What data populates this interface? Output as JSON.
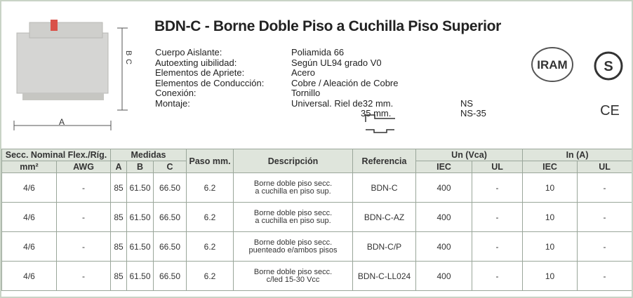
{
  "header": {
    "title": "BDN-C - Borne Doble Piso a Cuchilla Piso Superior"
  },
  "diagram": {
    "dim_a": "A",
    "dim_b": "B",
    "dim_c": "C"
  },
  "specs": [
    {
      "label": "Cuerpo Aislante:",
      "value": "Poliamida 66"
    },
    {
      "label": "Autoexting uibilidad:",
      "value": "Según UL94 grado V0"
    },
    {
      "label": "Elementos de Apriete:",
      "value": "Acero"
    },
    {
      "label": "Elementos de Conducción:",
      "value": "Cobre / Aleación de Cobre"
    },
    {
      "label": "Conexión:",
      "value": "Tornillo"
    },
    {
      "label": "Montaje:",
      "value": "Universal. Riel de32 mm.",
      "rail": "NS"
    }
  ],
  "mounting_extra": {
    "value": "35 mm.",
    "rail": "NS-35"
  },
  "logos": {
    "iram": "IRAM",
    "s": "S",
    "ce": "CE"
  },
  "table": {
    "group_headers": [
      "Secc. Nominal Flex./Ríg.",
      "Medidas",
      "Paso mm.",
      "Descripción",
      "Referencia",
      "Un (Vca)",
      "In (A)"
    ],
    "sub_headers": [
      "mm²",
      "AWG",
      "A",
      "B",
      "C",
      "IEC",
      "UL",
      "IEC",
      "UL"
    ],
    "rows": [
      [
        "4/6",
        "-",
        "85",
        "61.50",
        "66.50",
        "6.2",
        [
          "Borne doble piso secc.",
          "a cuchilla en piso sup."
        ],
        "BDN-C",
        "400",
        "-",
        "10",
        "-"
      ],
      [
        "4/6",
        "-",
        "85",
        "61.50",
        "66.50",
        "6.2",
        [
          "Borne doble piso secc.",
          "a cuchilla en piso sup."
        ],
        "BDN-C-AZ",
        "400",
        "-",
        "10",
        "-"
      ],
      [
        "4/6",
        "-",
        "85",
        "61.50",
        "66.50",
        "6.2",
        [
          "Borne doble piso secc.",
          "puenteado e/ambos pisos"
        ],
        "BDN-C/P",
        "400",
        "-",
        "10",
        "-"
      ],
      [
        "4/6",
        "-",
        "85",
        "61.50",
        "66.50",
        "6.2",
        [
          "Borne doble piso secc.",
          "c/led 15-30 Vcc"
        ],
        "BDN-C-LL024",
        "400",
        "-",
        "10",
        "-"
      ]
    ]
  }
}
